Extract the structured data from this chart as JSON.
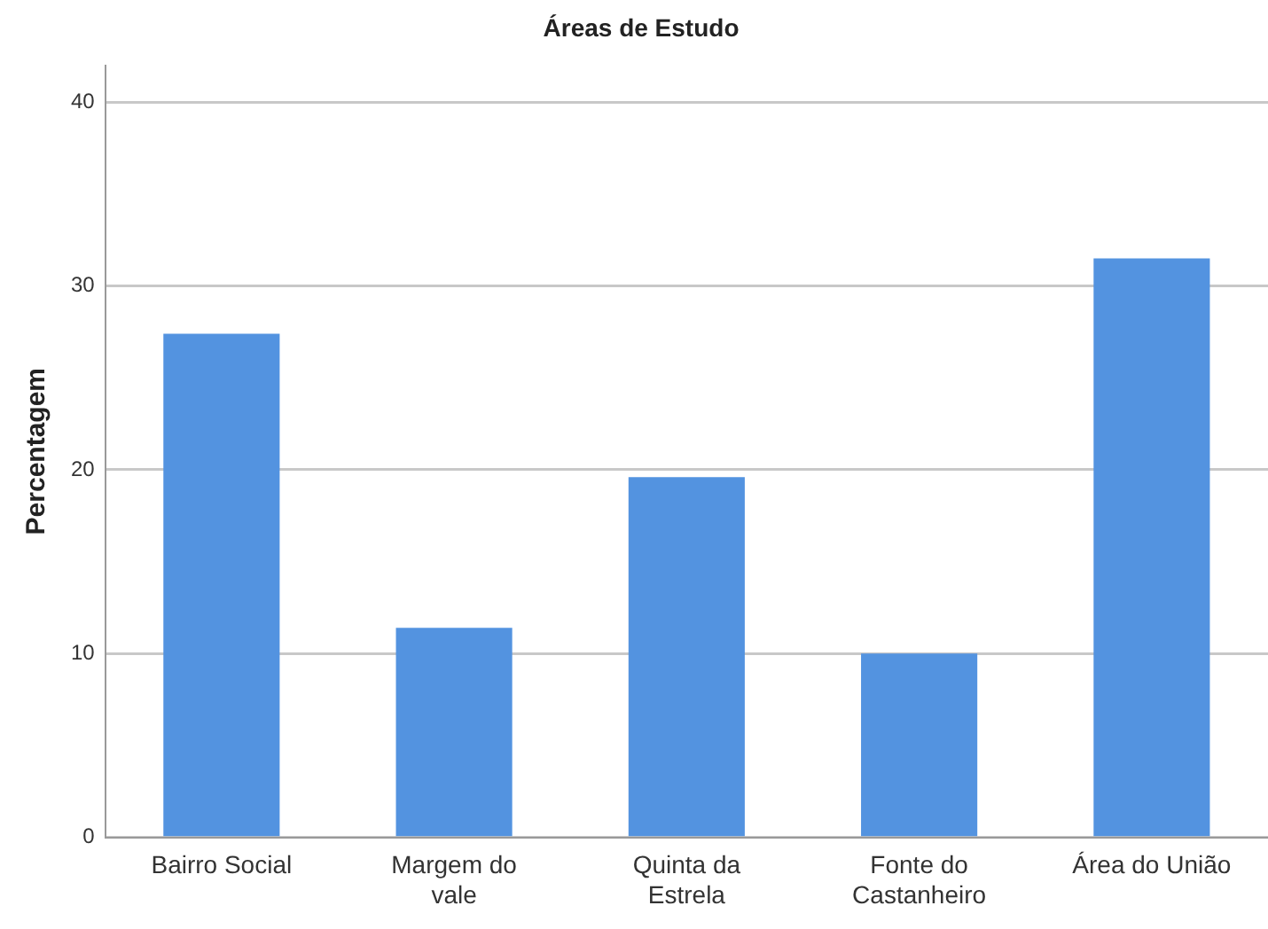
{
  "chart_data": {
    "type": "bar",
    "title": "Áreas de Estudo",
    "ylabel": "Percentagem",
    "categories": [
      "Bairro Social",
      "Margem do vale",
      "Quinta da Estrela",
      "Fonte do Castanheiro",
      "Área do União"
    ],
    "values": [
      27.4,
      11.4,
      19.6,
      10.0,
      31.5
    ],
    "color": "#5393e0",
    "ylim": [
      0,
      42
    ],
    "yticks": [
      0,
      10,
      20,
      30,
      40
    ],
    "grid": "y"
  }
}
